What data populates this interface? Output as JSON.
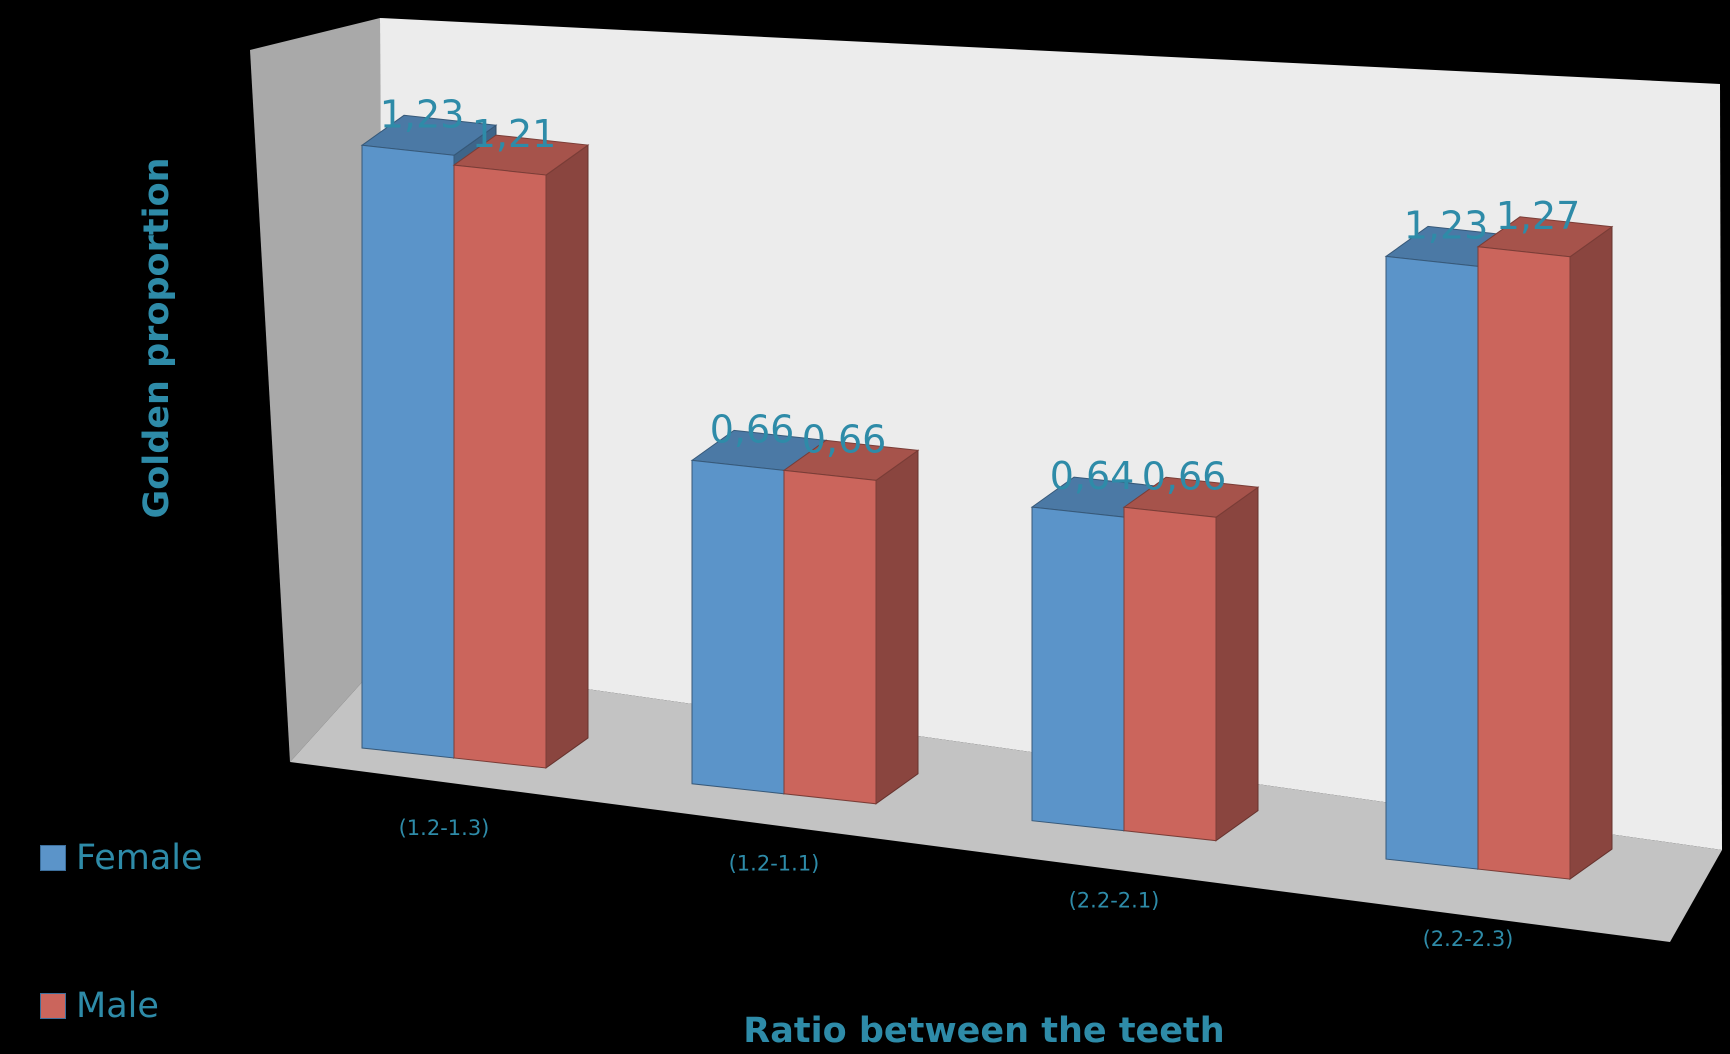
{
  "chart_data": {
    "type": "bar",
    "title": "",
    "xlabel": "Ratio between the teeth",
    "ylabel": "Golden proportion",
    "categories": [
      "(1.2-1.3)",
      "(1.2-1.1)",
      "(2.2-2.1)",
      "(2.2-2.3)"
    ],
    "series": [
      {
        "name": "Female",
        "values": [
          1.23,
          0.66,
          0.64,
          1.23
        ],
        "labels": [
          "1,23",
          "0,66",
          "0,64",
          "1,23"
        ],
        "color": "#5b94c9"
      },
      {
        "name": "Male",
        "values": [
          1.21,
          0.66,
          0.66,
          1.27
        ],
        "labels": [
          "1,21",
          "0,66",
          "0,66",
          "1,27"
        ],
        "color": "#cb655c"
      }
    ],
    "ylim": [
      0,
      1.3
    ],
    "grid": false,
    "legend_position": "bottom-left",
    "style": "3d-clustered-column"
  },
  "colors": {
    "background": "#000000",
    "text": "#2e8ba8",
    "back_wall": "#ececec",
    "side_wall": "#a9a9a9",
    "floor": "#c3c3c3"
  }
}
